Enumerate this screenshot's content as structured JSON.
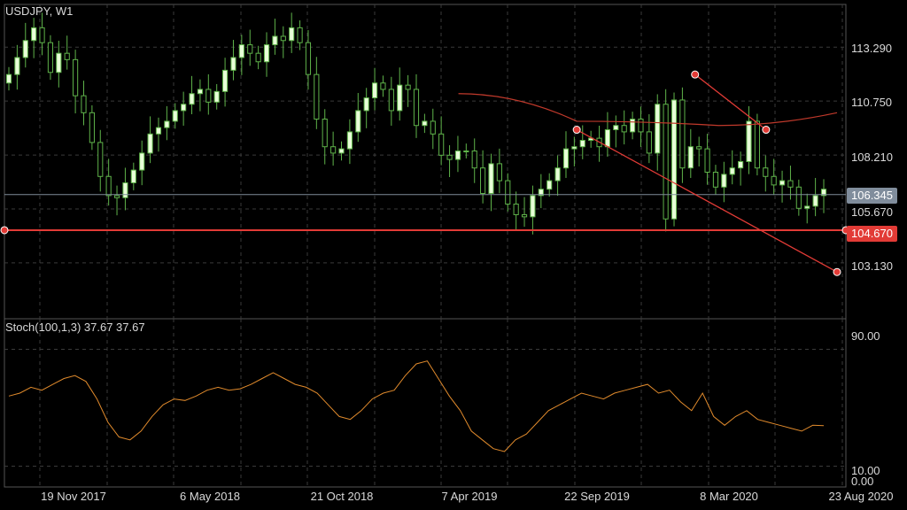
{
  "header": {
    "symbol_label": "USDJPY, W1"
  },
  "price_axis": {
    "ticks": [
      "113.290",
      "110.750",
      "108.210",
      "105.670",
      "103.130"
    ],
    "bid_tag": "106.345",
    "level_tag": "104.670"
  },
  "stoch_panel": {
    "title": "Stoch(100,1,3) 37.67 37.67",
    "ticks": [
      "90.00",
      "10.00",
      "0.00"
    ]
  },
  "time_axis": {
    "labels": [
      "19 Nov 2017",
      "6 May 2018",
      "21 Oct 2018",
      "7 Apr 2019",
      "22 Sep 2019",
      "8 Mar 2020",
      "23 Aug 2020"
    ]
  },
  "colors": {
    "background": "#000000",
    "candle_outline": "#5fb34a",
    "candle_fill": "#e8ffd8",
    "grid": "#3a3a3a",
    "moving_average": "#c0392b",
    "horizontal_level": "#e23b36",
    "trend_lines": "#e23b36",
    "stochastic_line": "#e08a2c",
    "bid_line": "#7f8c99"
  },
  "chart_data": [
    {
      "type": "candlestick",
      "title": "USDJPY, W1",
      "x_range": [
        "2017-09",
        "2020-08"
      ],
      "ylim": [
        100.5,
        115.3
      ],
      "grid": true,
      "horizontal_levels": [
        104.67
      ],
      "current_bid": 106.345,
      "close_series": [
        112.0,
        112.8,
        113.6,
        114.2,
        113.5,
        112.1,
        113.0,
        112.7,
        111.0,
        110.2,
        108.8,
        107.2,
        106.3,
        106.2,
        106.9,
        107.5,
        108.3,
        109.2,
        109.5,
        109.8,
        110.3,
        110.6,
        111.1,
        111.3,
        110.7,
        111.2,
        112.2,
        112.8,
        113.4,
        113.0,
        112.6,
        113.4,
        113.8,
        113.6,
        114.2,
        113.5,
        112.0,
        109.9,
        108.6,
        108.3,
        108.5,
        109.3,
        110.3,
        110.9,
        111.6,
        111.3,
        110.3,
        111.5,
        111.3,
        109.6,
        109.8,
        109.2,
        108.2,
        108.0,
        108.4,
        108.4,
        107.6,
        106.4,
        107.8,
        107.0,
        105.9,
        105.4,
        105.3,
        106.3,
        106.6,
        107.0,
        107.6,
        108.5,
        108.6,
        108.9,
        109.0,
        108.6,
        109.4,
        109.6,
        109.3,
        109.9,
        109.3,
        108.3,
        110.6,
        105.2,
        110.8,
        107.6,
        108.6,
        108.5,
        107.4,
        106.7,
        107.3,
        107.6,
        107.9,
        109.8,
        107.6,
        107.2,
        106.8,
        107.0,
        106.7,
        105.7,
        105.8,
        106.3,
        106.6
      ],
      "moving_average": [
        {
          "x": "2019-04",
          "y": 111.1
        },
        {
          "x": "2019-09",
          "y": 109.8
        },
        {
          "x": "2020-03",
          "y": 109.6
        },
        {
          "x": "2020-08",
          "y": 110.2
        }
      ],
      "trend_lines": [
        {
          "from": {
            "x": "2020-02",
            "y": 112.0
          },
          "to": {
            "x": "2020-05",
            "y": 109.4
          }
        },
        {
          "from": {
            "x": "2019-09",
            "y": 109.4
          },
          "to": {
            "x": "2020-08",
            "y": 102.7
          }
        }
      ]
    },
    {
      "type": "line",
      "title": "Stoch(100,1,3) 37.67 37.67",
      "ylim": [
        0,
        100
      ],
      "grid": true,
      "series": [
        {
          "values": [
            58,
            60,
            64,
            62,
            66,
            70,
            72,
            68,
            56,
            40,
            30,
            28,
            34,
            44,
            52,
            56,
            55,
            58,
            62,
            64,
            62,
            63,
            66,
            70,
            74,
            70,
            66,
            64,
            60,
            52,
            44,
            42,
            48,
            56,
            60,
            62,
            72,
            80,
            82,
            70,
            58,
            48,
            34,
            28,
            22,
            20,
            28,
            32,
            40,
            48,
            52,
            56,
            60,
            58,
            56,
            60,
            62,
            64,
            66,
            60,
            62,
            54,
            48,
            60,
            44,
            38,
            44,
            48,
            42,
            40,
            38,
            36,
            34,
            38,
            37.67
          ]
        }
      ]
    }
  ]
}
